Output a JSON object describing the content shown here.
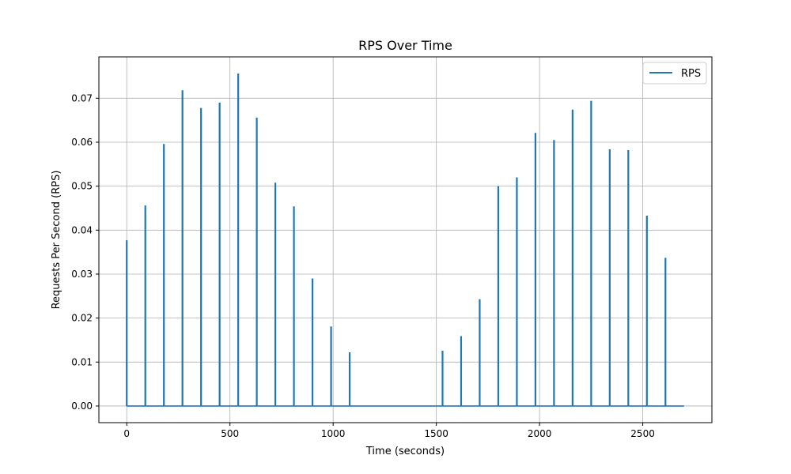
{
  "chart_data": {
    "type": "line",
    "title": "RPS Over Time",
    "xlabel": "Time (seconds)",
    "ylabel": "Requests Per Second (RPS)",
    "xlim": [
      -135,
      2835
    ],
    "ylim": [
      -0.00378,
      0.0794
    ],
    "xticks": [
      0,
      500,
      1000,
      1500,
      2000,
      2500
    ],
    "xtick_labels": [
      "0",
      "500",
      "1000",
      "1500",
      "2000",
      "2500"
    ],
    "yticks": [
      0.0,
      0.01,
      0.02,
      0.03,
      0.04,
      0.05,
      0.06,
      0.07
    ],
    "ytick_labels": [
      "0.00",
      "0.01",
      "0.02",
      "0.03",
      "0.04",
      "0.05",
      "0.06",
      "0.07"
    ],
    "grid": true,
    "legend_placement": "top-right",
    "x_end": 2700,
    "series": [
      {
        "name": "RPS",
        "color": "#1f77b4",
        "spikes": [
          {
            "x": 0,
            "y": 0.0377
          },
          {
            "x": 90,
            "y": 0.0456
          },
          {
            "x": 180,
            "y": 0.0596
          },
          {
            "x": 270,
            "y": 0.0718
          },
          {
            "x": 360,
            "y": 0.0678
          },
          {
            "x": 450,
            "y": 0.069
          },
          {
            "x": 540,
            "y": 0.0756
          },
          {
            "x": 630,
            "y": 0.0656
          },
          {
            "x": 720,
            "y": 0.0508
          },
          {
            "x": 810,
            "y": 0.0454
          },
          {
            "x": 900,
            "y": 0.029
          },
          {
            "x": 990,
            "y": 0.0181
          },
          {
            "x": 1080,
            "y": 0.0122
          },
          {
            "x": 1530,
            "y": 0.0126
          },
          {
            "x": 1620,
            "y": 0.0159
          },
          {
            "x": 1710,
            "y": 0.0243
          },
          {
            "x": 1800,
            "y": 0.05
          },
          {
            "x": 1890,
            "y": 0.052
          },
          {
            "x": 1980,
            "y": 0.0621
          },
          {
            "x": 2070,
            "y": 0.0605
          },
          {
            "x": 2160,
            "y": 0.0674
          },
          {
            "x": 2250,
            "y": 0.0694
          },
          {
            "x": 2340,
            "y": 0.0584
          },
          {
            "x": 2430,
            "y": 0.0582
          },
          {
            "x": 2520,
            "y": 0.0433
          },
          {
            "x": 2610,
            "y": 0.0337
          }
        ]
      }
    ]
  }
}
